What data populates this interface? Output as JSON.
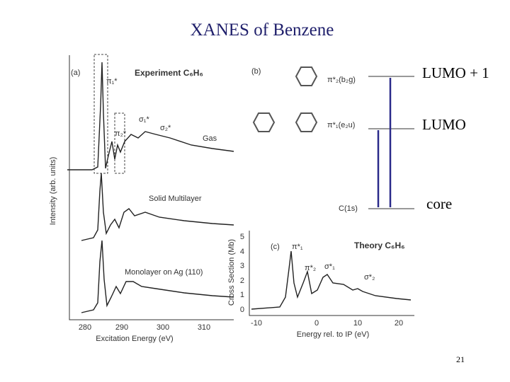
{
  "title": "XANES of Benzene",
  "panel_a": {
    "label": "(a)",
    "heading": "Experiment C₆H₆",
    "peaks": [
      "π₁*",
      "π₂*",
      "σ₁*",
      "σ₂*"
    ],
    "traces": [
      "Gas",
      "Solid Multilayer",
      "Monolayer on Ag (110)"
    ],
    "x_ticks": [
      "280",
      "290",
      "300",
      "310"
    ],
    "x_axis_label": "Excitation Energy (eV)",
    "y_axis_label": "Intensity (arb. units)"
  },
  "panel_b": {
    "label": "(b)",
    "orbitals": [
      "π*₂(b₂g)",
      "π*₁(e₂u)",
      "C(1s)"
    ]
  },
  "panel_c": {
    "label": "(c)",
    "heading": "Theory C₆H₆",
    "peaks": [
      "π*₁",
      "π*₂",
      "σ*₁",
      "σ*₂"
    ],
    "x_ticks": [
      "-10",
      "0",
      "10",
      "20"
    ],
    "y_ticks": [
      "0",
      "1",
      "2",
      "3",
      "4",
      "5"
    ],
    "x_axis_label": "Energy rel. to IP (eV)",
    "y_axis_label": "Cross Section (Mb)"
  },
  "levels": [
    "LUMO + 1",
    "LUMO",
    "core"
  ],
  "page_number": "21"
}
